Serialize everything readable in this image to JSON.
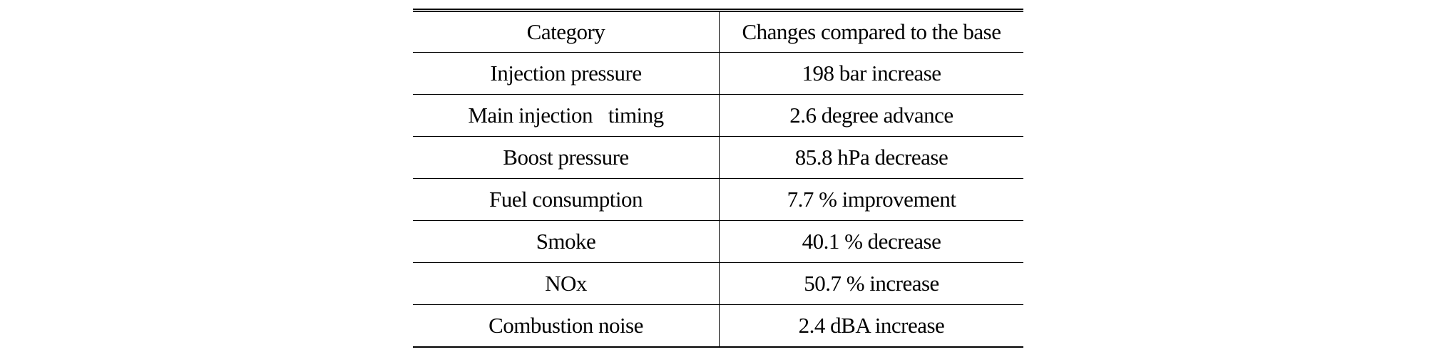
{
  "table": {
    "header": [
      "Category",
      "Changes compared to the base"
    ],
    "rows": [
      [
        "Injection pressure",
        "198 bar increase"
      ],
      [
        "Main injection   timing",
        "2.6 degree advance"
      ],
      [
        "Boost pressure",
        "85.8 hPa decrease"
      ],
      [
        "Fuel consumption",
        "7.7 % improvement"
      ],
      [
        "Smoke",
        "40.1 % decrease"
      ],
      [
        "NOx",
        "50.7 % increase"
      ],
      [
        "Combustion noise",
        "2.4 dBA increase"
      ]
    ]
  }
}
